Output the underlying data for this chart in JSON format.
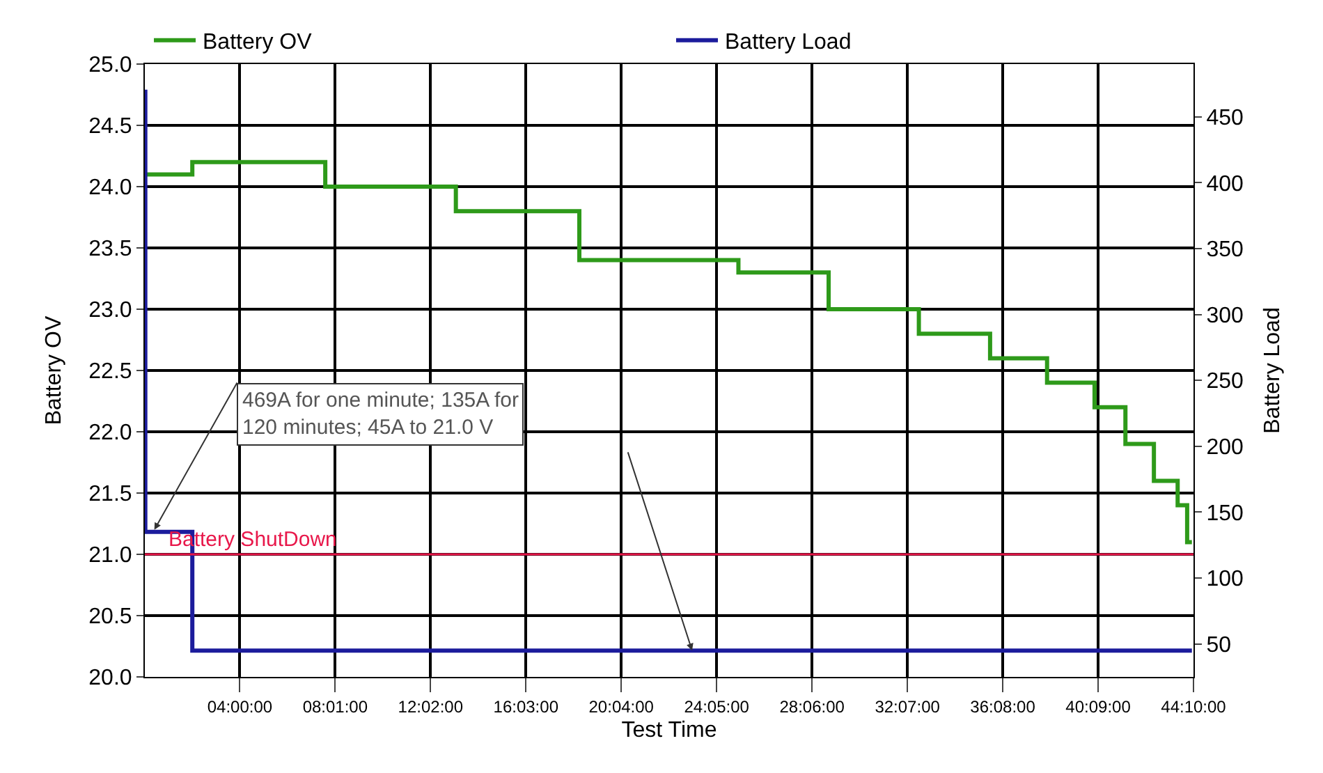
{
  "chart_data": {
    "type": "step",
    "xlabel": "Test Time",
    "ylabel": "Battery OV",
    "y2label": "Battery Load",
    "xlim": [
      0,
      44.1667
    ],
    "xticks": [
      {
        "value": 4,
        "label": "04:00:00"
      },
      {
        "value": 8.0167,
        "label": "08:01:00"
      },
      {
        "value": 12.0333,
        "label": "12:02:00"
      },
      {
        "value": 16.05,
        "label": "16:03:00"
      },
      {
        "value": 20.0667,
        "label": "20:04:00"
      },
      {
        "value": 24.0833,
        "label": "24:05:00"
      },
      {
        "value": 28.1,
        "label": "28:06:00"
      },
      {
        "value": 32.1167,
        "label": "32:07:00"
      },
      {
        "value": 36.1333,
        "label": "36:08:00"
      },
      {
        "value": 40.15,
        "label": "40:09:00"
      },
      {
        "value": 44.1667,
        "label": "44:10:00"
      }
    ],
    "ylim": [
      20,
      25
    ],
    "yticks": [
      {
        "value": 20,
        "label": "20.0"
      },
      {
        "value": 20.5,
        "label": "20.5"
      },
      {
        "value": 21,
        "label": "21.0"
      },
      {
        "value": 21.5,
        "label": "21.5"
      },
      {
        "value": 22,
        "label": "22.0"
      },
      {
        "value": 22.5,
        "label": "22.5"
      },
      {
        "value": 23,
        "label": "23.0"
      },
      {
        "value": 23.5,
        "label": "23.5"
      },
      {
        "value": 24,
        "label": "24.0"
      },
      {
        "value": 24.5,
        "label": "24.5"
      },
      {
        "value": 25,
        "label": "25.0"
      }
    ],
    "y2lim": [
      25,
      490
    ],
    "y2ticks": [
      50,
      100,
      150,
      200,
      250,
      300,
      350,
      400,
      450
    ],
    "series": [
      {
        "name": "Battery OV",
        "color": "#2e9a1a",
        "x": [
          0,
          2.0,
          7.6,
          13.1,
          18.3,
          25.0,
          28.8,
          32.6,
          35.6,
          38.0,
          40.0,
          41.3,
          42.5,
          43.5,
          43.9,
          44.1
        ],
        "values": [
          24.1,
          24.2,
          24.0,
          23.8,
          23.4,
          23.3,
          23.0,
          22.8,
          22.6,
          22.4,
          22.2,
          21.9,
          21.6,
          21.4,
          21.1,
          21.1
        ]
      },
      {
        "name": "Battery Load",
        "color": "#1c1c9c",
        "axis": "y2",
        "x": [
          0,
          0.02,
          2.0,
          44.1
        ],
        "values": [
          469,
          135,
          45,
          45
        ]
      }
    ],
    "ref_lines": [
      {
        "axis": "y",
        "value": 21.0,
        "label": "Battery ShutDown",
        "color": "#e8174a"
      }
    ],
    "annotations": [
      {
        "text": "469A for one minute; 135A for 120 minutes; 45A to 21.0 V",
        "x": 0.4,
        "y": 21.2
      }
    ],
    "grid": true,
    "legend": "top",
    "marker": "none",
    "line_style": "solid"
  }
}
